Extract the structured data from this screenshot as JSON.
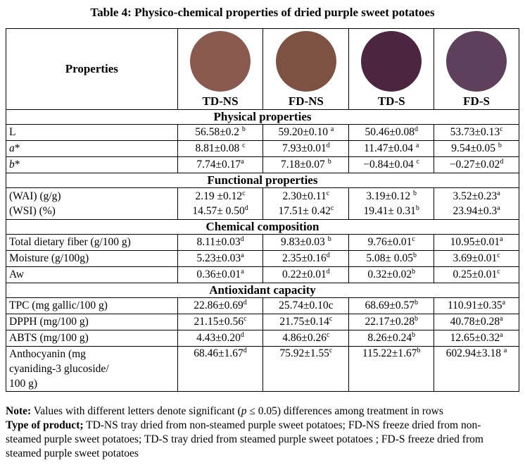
{
  "title": "Table 4: Physico-chemical properties of dried purple sweet potatoes",
  "header": {
    "properties_label": "Properties",
    "columns": [
      {
        "label": "TD-NS",
        "swatch_color": "#8a5a4e"
      },
      {
        "label": "FD-NS",
        "swatch_color": "#7e5242"
      },
      {
        "label": "TD-S",
        "swatch_color": "#4c2640"
      },
      {
        "label": "FD-S",
        "swatch_color": "#5e3f5c"
      }
    ]
  },
  "sections": {
    "physical": "Physical properties",
    "functional": "Functional properties",
    "chemical": "Chemical composition",
    "antioxidant": "Antioxidant capacity"
  },
  "rows": {
    "L": {
      "label": "L",
      "values": [
        {
          "v": "56.58±0.2 ",
          "s": "b"
        },
        {
          "v": "59.20±0.10 ",
          "s": "a"
        },
        {
          "v": "50.46±0.08",
          "s": "d"
        },
        {
          "v": "53.73±0.13",
          "s": "c"
        }
      ]
    },
    "a": {
      "label": "a*",
      "values": [
        {
          "v": "8.81±0.08 ",
          "s": "c"
        },
        {
          "v": "7.93±0.01",
          "s": "d"
        },
        {
          "v": "11.47±0.04 ",
          "s": "a"
        },
        {
          "v": "9.54±0.05 ",
          "s": "b"
        }
      ]
    },
    "b": {
      "label": "b*",
      "values": [
        {
          "v": "7.74±0.17",
          "s": "a"
        },
        {
          "v": "7.18±0.07 ",
          "s": "b"
        },
        {
          "v": "−0.84±0.04 ",
          "s": "c"
        },
        {
          "v": "−0.27±0.02",
          "s": "d"
        }
      ]
    },
    "wai": {
      "label": "(WAI) (g/g)",
      "values": [
        {
          "v": "2.19 ±0.12",
          "s": "c"
        },
        {
          "v": "2.30±0.11",
          "s": "c"
        },
        {
          "v": "3.19±0.12 ",
          "s": "b"
        },
        {
          "v": "3.52±0.23",
          "s": "a"
        }
      ]
    },
    "wsi": {
      "label": "(WSI) (%)",
      "values": [
        {
          "v": "14.57± 0.50",
          "s": "d"
        },
        {
          "v": "17.51± 0.42",
          "s": "c"
        },
        {
          "v": "19.41± 0.31",
          "s": "b"
        },
        {
          "v": "23.94±0.3",
          "s": "a"
        }
      ]
    },
    "tdf": {
      "label": "Total dietary fiber (g/100 g)",
      "values": [
        {
          "v": "8.11±0.03",
          "s": "d"
        },
        {
          "v": "9.83±0.03 ",
          "s": "b"
        },
        {
          "v": "9.76±0.01",
          "s": "c"
        },
        {
          "v": "10.95±0.01",
          "s": "a"
        }
      ]
    },
    "moisture": {
      "label": "Moisture (g/100g)",
      "values": [
        {
          "v": "5.23±0.03",
          "s": "a"
        },
        {
          "v": "2.35±0.16",
          "s": "d"
        },
        {
          "v": "5.08± 0.05",
          "s": "b"
        },
        {
          "v": "3.69±0.01",
          "s": "c"
        }
      ]
    },
    "aw": {
      "label": "Aw",
      "values": [
        {
          "v": "0.36±0.01",
          "s": "a"
        },
        {
          "v": "0.22±0.01",
          "s": "d"
        },
        {
          "v": "0.32±0.02",
          "s": "b"
        },
        {
          "v": "0.25±0.01",
          "s": "c"
        }
      ]
    },
    "tpc": {
      "label": "TPC (mg gallic/100 g)",
      "values": [
        {
          "v": "22.86±0.69",
          "s": "d"
        },
        {
          "v": "25.74±0.10c",
          "s": ""
        },
        {
          "v": "68.69±0.57",
          "s": "b"
        },
        {
          "v": "110.91±0.35",
          "s": "a"
        }
      ]
    },
    "dpph": {
      "label": "DPPH (mg/100 g)",
      "values": [
        {
          "v": "21.15±0.56",
          "s": "c"
        },
        {
          "v": "21.75±0.14",
          "s": "c"
        },
        {
          "v": "22.17±0.28",
          "s": "b"
        },
        {
          "v": "40.78±0.28",
          "s": "a"
        }
      ]
    },
    "abts": {
      "label": "ABTS (mg/100 g)",
      "values": [
        {
          "v": "4.43±0.20",
          "s": "d"
        },
        {
          "v": "4.86±0.26",
          "s": "c"
        },
        {
          "v": "8.26±0.24",
          "s": "b"
        },
        {
          "v": "12.65±0.32",
          "s": "a"
        }
      ]
    },
    "anthocyanin": {
      "label_lines": [
        "Anthocyanin (mg",
        "cyaniding-3 glucoside/",
        "100 g)"
      ],
      "values": [
        {
          "v": "68.46±1.67",
          "s": "d"
        },
        {
          "v": "75.92±1.55",
          "s": "c"
        },
        {
          "v": "115.22±1.67",
          "s": "b"
        },
        {
          "v": "602.94±3.18 ",
          "s": "a"
        }
      ]
    }
  },
  "notes": {
    "note_label": "Note:",
    "note_text_1": " Values with different letters denote significant (",
    "note_p": "p",
    "note_text_2": " ≤ 0.05) differences among treatment in rows",
    "type_label": "Type of product;",
    "type_text": " TD-NS tray dried from non-steamed purple sweet potatoes; FD-NS freeze dried from non- steamed purple sweet potatoes; TD-S tray dried from steamed purple sweet potatoes ; FD-S freeze dried from steamed purple sweet potatoes"
  }
}
